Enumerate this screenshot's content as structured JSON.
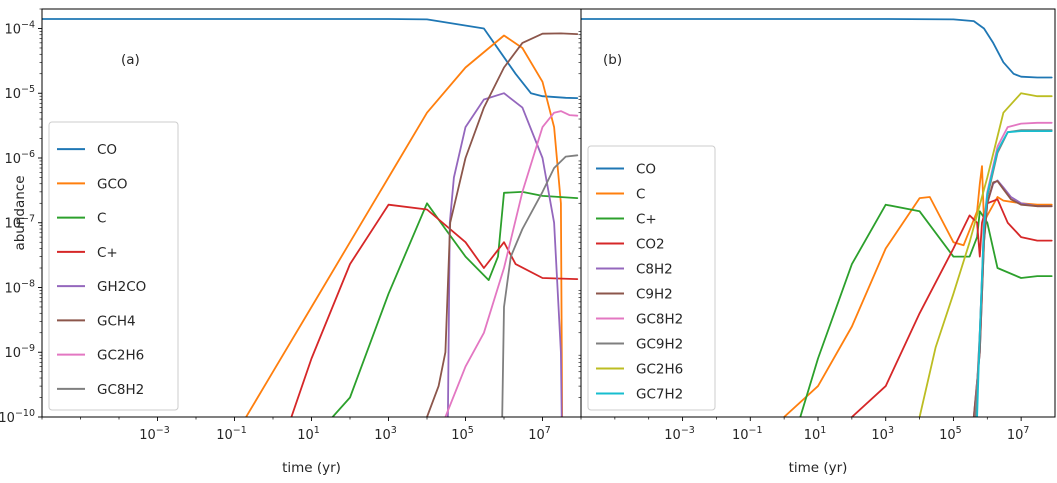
{
  "chart_data": [
    {
      "type": "line",
      "panel_label": "(a)",
      "xlabel": "time (yr)",
      "ylabel": "abundance",
      "xscale": "log",
      "yscale": "log",
      "xlim": [
        1e-06,
        100000000
      ],
      "ylim": [
        1e-10,
        0.0002
      ],
      "xticks": [
        {
          "v": 0.001,
          "m": "−3"
        },
        {
          "v": 0.1,
          "m": "−1"
        },
        {
          "v": 10,
          "m": "1"
        },
        {
          "v": 1000,
          "m": "3"
        },
        {
          "v": 100000,
          "m": "5"
        },
        {
          "v": 10000000,
          "m": "7"
        }
      ],
      "yticks": [
        {
          "v": 1e-10,
          "m": "−10"
        },
        {
          "v": 1e-09,
          "m": "−9"
        },
        {
          "v": 1e-08,
          "m": "−8"
        },
        {
          "v": 1e-07,
          "m": "−7"
        },
        {
          "v": 1e-06,
          "m": "−6"
        },
        {
          "v": 1e-05,
          "m": "−5"
        },
        {
          "v": 0.0001,
          "m": "−4"
        }
      ],
      "legend_position": "lower-left",
      "series": [
        {
          "name": "CO",
          "color": "#1f77b4",
          "x": [
            1e-06,
            1000.0,
            10000.0,
            300000.0,
            2000000.0,
            5000000.0,
            10000000.0,
            40000000.0,
            80000000.0
          ],
          "y": [
            0.00014,
            0.00014,
            0.000138,
            0.0001,
            2e-05,
            1e-05,
            9e-06,
            8.5e-06,
            8.4e-06
          ]
        },
        {
          "name": "GCO",
          "color": "#ff7f0e",
          "x": [
            0.1,
            1,
            10,
            100.0,
            1000.0,
            10000.0,
            100000.0,
            1000000.0,
            3000000.0,
            10000000.0,
            20000000.0,
            30000000.0,
            33000000.0
          ],
          "y": [
            5e-11,
            5e-10,
            5e-09,
            5e-08,
            5e-07,
            5e-06,
            2.5e-05,
            7.8e-05,
            5e-05,
            1.5e-05,
            3e-06,
            2e-07,
            1e-11
          ]
        },
        {
          "name": "C",
          "color": "#2ca02c",
          "x": [
            30,
            100,
            1000.0,
            10000.0,
            30000.0,
            100000.0,
            400000.0,
            700000.0,
            1000000.0,
            3000000.0,
            10000000.0,
            80000000.0
          ],
          "y": [
            9e-11,
            2e-10,
            8e-09,
            2e-07,
            8e-08,
            3e-08,
            1.3e-08,
            3e-08,
            2.9e-07,
            3e-07,
            2.6e-07,
            2.4e-07
          ]
        },
        {
          "name": "C+",
          "color": "#d62728",
          "x": [
            3,
            10,
            100,
            1000.0,
            10000.0,
            100000.0,
            300000.0,
            1000000.0,
            2000000.0,
            10000000.0,
            80000000.0
          ],
          "y": [
            1e-10,
            8e-10,
            2.3e-08,
            1.9e-07,
            1.6e-07,
            5e-08,
            2e-08,
            5e-08,
            2.3e-08,
            1.4e-08,
            1.35e-08
          ]
        },
        {
          "name": "GH2CO",
          "color": "#9467bd",
          "x": [
            35000.0,
            39000.0,
            50000.0,
            100000.0,
            300000.0,
            1000000.0,
            3000000.0,
            10000000.0,
            20000000.0,
            30000000.0,
            33000000.0
          ],
          "y": [
            1e-10,
            1e-07,
            5e-07,
            3e-06,
            8e-06,
            1e-05,
            6e-06,
            1e-06,
            1e-07,
            1e-09,
            1e-11
          ]
        },
        {
          "name": "GCH4",
          "color": "#8c564b",
          "x": [
            10000.0,
            20000.0,
            30000.0,
            40000.0,
            100000.0,
            300000.0,
            1000000.0,
            3000000.0,
            10000000.0,
            30000000.0,
            80000000.0
          ],
          "y": [
            1e-10,
            3e-10,
            1e-09,
            1e-07,
            1e-06,
            6e-06,
            2.5e-05,
            6e-05,
            8.3e-05,
            8.4e-05,
            8.2e-05
          ]
        },
        {
          "name": "GC2H6",
          "color": "#e377c2",
          "x": [
            30000.0,
            100000.0,
            300000.0,
            1000000.0,
            3000000.0,
            10000000.0,
            20000000.0,
            30000000.0,
            50000000.0,
            80000000.0
          ],
          "y": [
            1e-10,
            6e-10,
            2e-09,
            2e-08,
            3e-07,
            3e-06,
            5e-06,
            5.3e-06,
            4.6e-06,
            4.5e-06
          ]
        },
        {
          "name": "GC8H2",
          "color": "#7f7f7f",
          "x": [
            900000.0,
            1000000.0,
            1500000.0,
            3000000.0,
            10000000.0,
            20000000.0,
            40000000.0,
            80000000.0
          ],
          "y": [
            1e-10,
            5e-09,
            3e-08,
            8e-08,
            3e-07,
            7e-07,
            1.05e-06,
            1.1e-06
          ]
        }
      ]
    },
    {
      "type": "line",
      "panel_label": "(b)",
      "xlabel": "time (yr)",
      "ylabel": "",
      "xscale": "log",
      "yscale": "log",
      "xlim": [
        1e-06,
        100000000
      ],
      "ylim": [
        1e-10,
        0.0002
      ],
      "xticks": [
        {
          "v": 0.001,
          "m": "−3"
        },
        {
          "v": 0.1,
          "m": "−1"
        },
        {
          "v": 10,
          "m": "1"
        },
        {
          "v": 1000,
          "m": "3"
        },
        {
          "v": 100000,
          "m": "5"
        },
        {
          "v": 10000000,
          "m": "7"
        }
      ],
      "legend_position": "lower-left",
      "series": [
        {
          "name": "CO",
          "color": "#1f77b4",
          "x": [
            1e-06,
            1000.0,
            100000.0,
            400000.0,
            800000.0,
            1500000.0,
            3000000.0,
            6000000.0,
            10000000.0,
            30000000.0,
            80000000.0
          ],
          "y": [
            0.00014,
            0.00014,
            0.000138,
            0.00013,
            0.0001,
            6e-05,
            3e-05,
            2e-05,
            1.8e-05,
            1.75e-05,
            1.75e-05
          ]
        },
        {
          "name": "C",
          "color": "#ff7f0e",
          "x": [
            0.1,
            1,
            10,
            100.0,
            1000.0,
            10000.0,
            20000.0,
            100000.0,
            200000.0,
            500000.0,
            600000.0,
            700000.0,
            800000.0,
            1000000.0,
            2000000.0,
            3000000.0,
            10000000.0,
            30000000.0,
            80000000.0
          ],
          "y": [
            2e-11,
            1e-10,
            3e-10,
            2.5e-09,
            4e-08,
            2.4e-07,
            2.5e-07,
            5e-08,
            4.5e-08,
            1.5e-07,
            4e-07,
            7.5e-07,
            1e-07,
            1.3e-07,
            2.5e-07,
            2.2e-07,
            2e-07,
            1.9e-07,
            1.9e-07
          ]
        },
        {
          "name": "C+",
          "color": "#2ca02c",
          "x": [
            3,
            10,
            100,
            1000.0,
            10000.0,
            100000.0,
            300000.0,
            500000.0,
            600000.0,
            800000.0,
            1000000.0,
            2000000.0,
            10000000.0,
            30000000.0,
            80000000.0
          ],
          "y": [
            1e-10,
            8e-10,
            2.3e-08,
            1.9e-07,
            1.5e-07,
            3e-08,
            3e-08,
            6e-08,
            1.5e-07,
            1.2e-07,
            1e-07,
            2e-08,
            1.4e-08,
            1.5e-08,
            1.5e-08
          ]
        },
        {
          "name": "CO2",
          "color": "#d62728",
          "x": [
            100,
            1000.0,
            10000.0,
            100000.0,
            300000.0,
            500000.0,
            600000.0,
            700000.0,
            1000000.0,
            2000000.0,
            4000000.0,
            10000000.0,
            30000000.0,
            80000000.0
          ],
          "y": [
            1e-10,
            3e-10,
            4e-09,
            4e-08,
            1.3e-07,
            1e-07,
            3e-08,
            1e-07,
            2e-07,
            2.3e-07,
            1e-07,
            6e-08,
            5.3e-08,
            5.3e-08
          ]
        },
        {
          "name": "C8H2",
          "color": "#9467bd",
          "x": [
            400000.0,
            600000.0,
            800000.0,
            1000000.0,
            1500000.0,
            2000000.0,
            3000000.0,
            5000000.0,
            10000000.0,
            30000000.0,
            80000000.0
          ],
          "y": [
            1e-10,
            1e-09,
            5e-08,
            2e-07,
            4e-07,
            4.5e-07,
            3.5e-07,
            2.5e-07,
            2e-07,
            1.8e-07,
            1.8e-07
          ]
        },
        {
          "name": "C9H2",
          "color": "#8c564b",
          "x": [
            400000.0,
            600000.0,
            800000.0,
            1000000.0,
            1500000.0,
            2000000.0,
            3000000.0,
            5000000.0,
            10000000.0,
            30000000.0,
            80000000.0
          ],
          "y": [
            1e-10,
            1e-09,
            5e-08,
            2e-07,
            4.2e-07,
            4.4e-07,
            3.3e-07,
            2.3e-07,
            1.9e-07,
            1.8e-07,
            1.8e-07
          ]
        },
        {
          "name": "GC8H2",
          "color": "#e377c2",
          "x": [
            450000.0,
            600000.0,
            800000.0,
            1000000.0,
            2000000.0,
            4000000.0,
            10000000.0,
            30000000.0,
            80000000.0
          ],
          "y": [
            1e-10,
            2e-09,
            1e-07,
            3e-07,
            1.5e-06,
            3e-06,
            3.4e-06,
            3.5e-06,
            3.5e-06
          ]
        },
        {
          "name": "GC9H2",
          "color": "#7f7f7f",
          "x": [
            450000.0,
            600000.0,
            800000.0,
            1000000.0,
            2000000.0,
            4000000.0,
            10000000.0,
            30000000.0,
            80000000.0
          ],
          "y": [
            1e-10,
            2e-09,
            8e-08,
            2.5e-07,
            1.2e-06,
            2.5e-06,
            2.7e-06,
            2.7e-06,
            2.7e-06
          ]
        },
        {
          "name": "GC2H6",
          "color": "#bcbd22",
          "x": [
            10000.0,
            30000.0,
            100000.0,
            300000.0,
            1000000.0,
            3000000.0,
            10000000.0,
            30000000.0,
            80000000.0
          ],
          "y": [
            1e-10,
            1.2e-09,
            8e-09,
            5e-08,
            5e-07,
            5e-06,
            1e-05,
            9e-06,
            9e-06
          ]
        },
        {
          "name": "GC7H2",
          "color": "#17becf",
          "x": [
            500000.0,
            600000.0,
            800000.0,
            1000000.0,
            2000000.0,
            4000000.0,
            10000000.0,
            30000000.0,
            80000000.0
          ],
          "y": [
            1e-10,
            2e-09,
            9e-08,
            2.8e-07,
            1.3e-06,
            2.5e-06,
            2.6e-06,
            2.6e-06,
            2.6e-06
          ]
        }
      ]
    }
  ]
}
